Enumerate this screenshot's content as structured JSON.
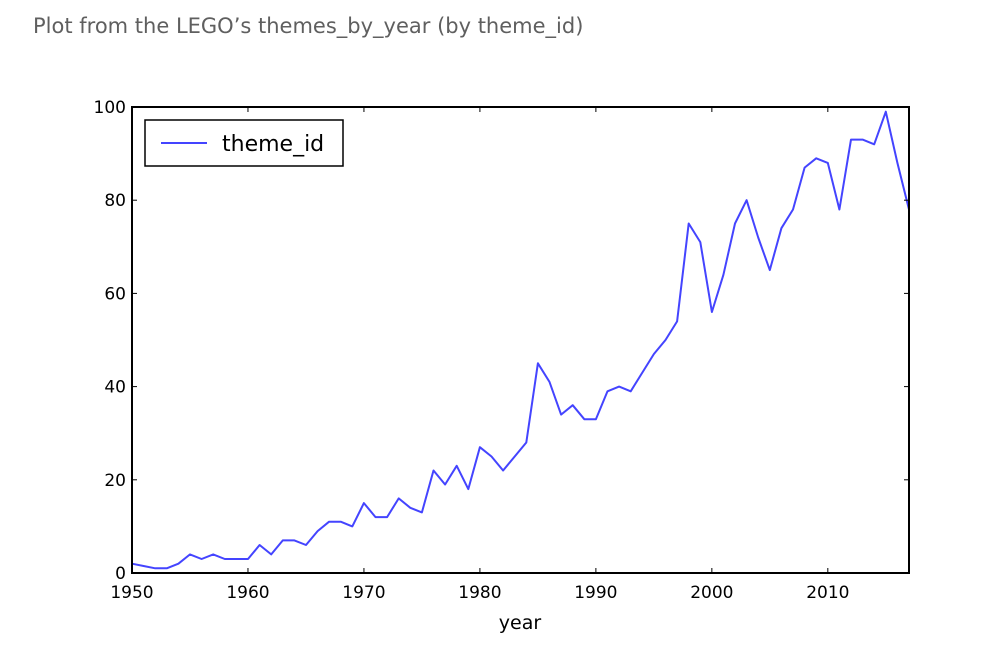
{
  "caption": "Plot from the LEGO’s themes_by_year (by theme_id)",
  "chart_data": {
    "type": "line",
    "title": "",
    "xlabel": "year",
    "ylabel": "",
    "xlim": [
      1950,
      2017
    ],
    "ylim": [
      0,
      100
    ],
    "xticks": [
      1950,
      1960,
      1970,
      1980,
      1990,
      2000,
      2010
    ],
    "yticks": [
      0,
      20,
      40,
      60,
      80,
      100
    ],
    "grid": false,
    "legend_position": "top-left",
    "series": [
      {
        "name": "theme_id",
        "color": "#4444ff",
        "x": [
          1950,
          1951,
          1952,
          1953,
          1954,
          1955,
          1956,
          1957,
          1958,
          1959,
          1960,
          1961,
          1962,
          1963,
          1964,
          1965,
          1966,
          1967,
          1968,
          1969,
          1970,
          1971,
          1972,
          1973,
          1974,
          1975,
          1976,
          1977,
          1978,
          1979,
          1980,
          1981,
          1982,
          1983,
          1984,
          1985,
          1986,
          1987,
          1988,
          1989,
          1990,
          1991,
          1992,
          1993,
          1994,
          1995,
          1996,
          1997,
          1998,
          1999,
          2000,
          2001,
          2002,
          2003,
          2004,
          2005,
          2006,
          2007,
          2008,
          2009,
          2010,
          2011,
          2012,
          2013,
          2014,
          2015,
          2016,
          2017
        ],
        "values": [
          2,
          1.5,
          1,
          1,
          2,
          4,
          3,
          4,
          3,
          3,
          3,
          6,
          4,
          7,
          7,
          6,
          9,
          11,
          11,
          10,
          15,
          12,
          12,
          16,
          14,
          13,
          22,
          19,
          23,
          18,
          27,
          25,
          22,
          25,
          28,
          45,
          41,
          34,
          36,
          33,
          33,
          39,
          40,
          39,
          43,
          47,
          50,
          54,
          75,
          71,
          56,
          64,
          75,
          80,
          72,
          65,
          74,
          78,
          87,
          89,
          88,
          78,
          93,
          93,
          92,
          99,
          88,
          78
        ]
      }
    ]
  }
}
